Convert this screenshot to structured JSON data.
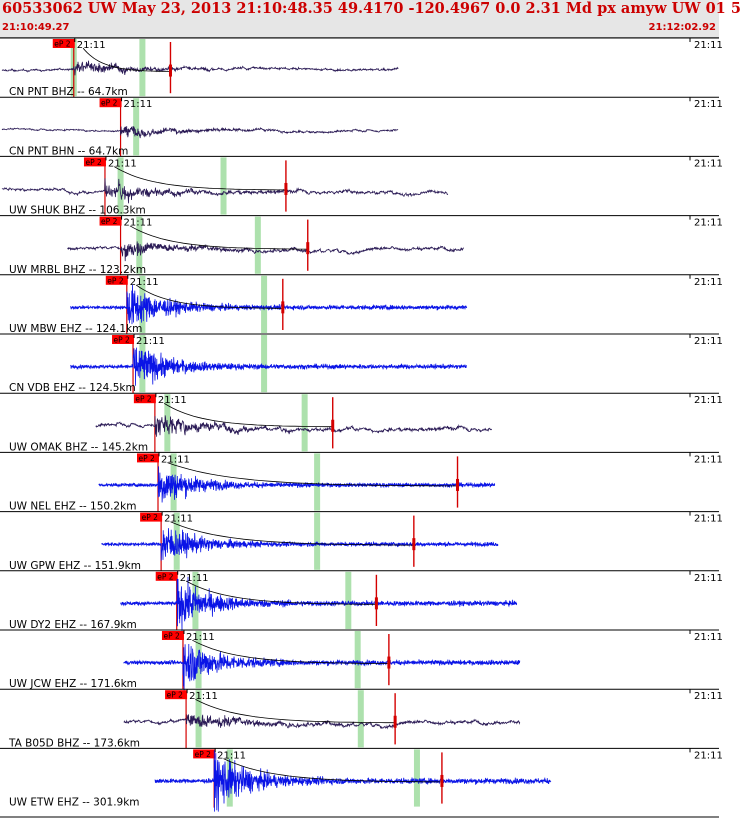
{
  "header": {
    "title": "60533062 UW May 23, 2013 21:10:48.35   49.4170 -120.4967  0.0 2.31 Md px amyw UW 01   5",
    "start_time": "21:10:49.27",
    "end_time": "21:12:02.92"
  },
  "colors": {
    "header_bg": "#e6e6e6",
    "title": "#cc0000",
    "broadband_trace": "#2a1a55",
    "short_period_trace": "#0a14e6",
    "pick_box": "#ff0000",
    "pick_line": "#d40000",
    "window_band": "#9fdc9f",
    "coda_curve": "#000000"
  },
  "chart_data": {
    "type": "seismogram_record_section",
    "tick_label": "21:11",
    "pick_label": "eP 2",
    "traces": [
      {
        "label": "CN PNT BHZ -- 64.7km",
        "component": "broadband",
        "pick_s": 23.0,
        "p_band_s": 23.0,
        "coda_band_s": 45.0,
        "coda_end_s": 54.0,
        "start_s": 0.0,
        "end_s": 127.0,
        "amp": 0.55
      },
      {
        "label": "CN PNT BHN -- 64.7km",
        "component": "broadband",
        "pick_s": 38.0,
        "p_band_s": 43.0,
        "coda_band_s": null,
        "coda_end_s": null,
        "start_s": 0.0,
        "end_s": 127.0,
        "amp": 0.45
      },
      {
        "label": "UW SHUK BHZ -- 106.3km",
        "component": "broadband",
        "pick_s": 33.0,
        "p_band_s": 38.0,
        "coda_band_s": 71.0,
        "coda_end_s": 91.0,
        "start_s": 0.0,
        "end_s": 143.0,
        "amp": 0.7
      },
      {
        "label": "UW MRBL BHZ -- 123.2km",
        "component": "broadband",
        "pick_s": 38.0,
        "p_band_s": 44.0,
        "coda_band_s": 82.0,
        "coda_end_s": 98.0,
        "start_s": 21.0,
        "end_s": 148.0,
        "amp": 0.7
      },
      {
        "label": "UW MBW EHZ -- 124.1km",
        "component": "short_period",
        "pick_s": 40.0,
        "p_band_s": 45.0,
        "coda_band_s": 84.0,
        "coda_end_s": 90.0,
        "start_s": 22.0,
        "end_s": 149.0,
        "amp": 0.6
      },
      {
        "label": "CN VDB EHZ -- 124.5km",
        "component": "short_period",
        "pick_s": 42.0,
        "p_band_s": 45.0,
        "coda_band_s": 84.0,
        "coda_end_s": null,
        "start_s": 22.0,
        "end_s": 149.0,
        "amp": 0.6
      },
      {
        "label": "UW OMAK BHZ -- 145.2km",
        "component": "broadband",
        "pick_s": 49.0,
        "p_band_s": 53.0,
        "coda_band_s": 97.0,
        "coda_end_s": 106.0,
        "start_s": 30.0,
        "end_s": 157.0,
        "amp": 0.8
      },
      {
        "label": "UW NEL EHZ -- 150.2km",
        "component": "short_period",
        "pick_s": 50.0,
        "p_band_s": 55.0,
        "coda_band_s": 101.0,
        "coda_end_s": 146.0,
        "start_s": 31.0,
        "end_s": 158.0,
        "amp": 0.55
      },
      {
        "label": "UW GPW EHZ -- 151.9km",
        "component": "short_period",
        "pick_s": 51.0,
        "p_band_s": 56.0,
        "coda_band_s": 101.0,
        "coda_end_s": 132.0,
        "start_s": 32.0,
        "end_s": 159.0,
        "amp": 0.55
      },
      {
        "label": "UW DY2 EHZ -- 167.9km",
        "component": "short_period",
        "pick_s": 56.0,
        "p_band_s": 62.0,
        "coda_band_s": 111.0,
        "coda_end_s": 120.0,
        "start_s": 38.0,
        "end_s": 165.0,
        "amp": 0.65
      },
      {
        "label": "UW JCW EHZ -- 171.6km",
        "component": "short_period",
        "pick_s": 58.0,
        "p_band_s": 63.0,
        "coda_band_s": 114.0,
        "coda_end_s": 124.0,
        "start_s": 39.0,
        "end_s": 166.0,
        "amp": 0.65
      },
      {
        "label": "TA B05D BHZ -- 173.6km",
        "component": "broadband",
        "pick_s": 59.0,
        "p_band_s": 63.0,
        "coda_band_s": 115.0,
        "coda_end_s": 126.0,
        "start_s": 39.0,
        "end_s": 166.0,
        "amp": 0.75
      },
      {
        "label": "UW ETW EHZ -- 301.9km",
        "component": "short_period",
        "pick_s": 68.0,
        "p_band_s": 73.0,
        "coda_band_s": 133.0,
        "coda_end_s": 141.0,
        "start_s": 49.0,
        "end_s": 176.0,
        "amp": 0.75
      }
    ]
  }
}
